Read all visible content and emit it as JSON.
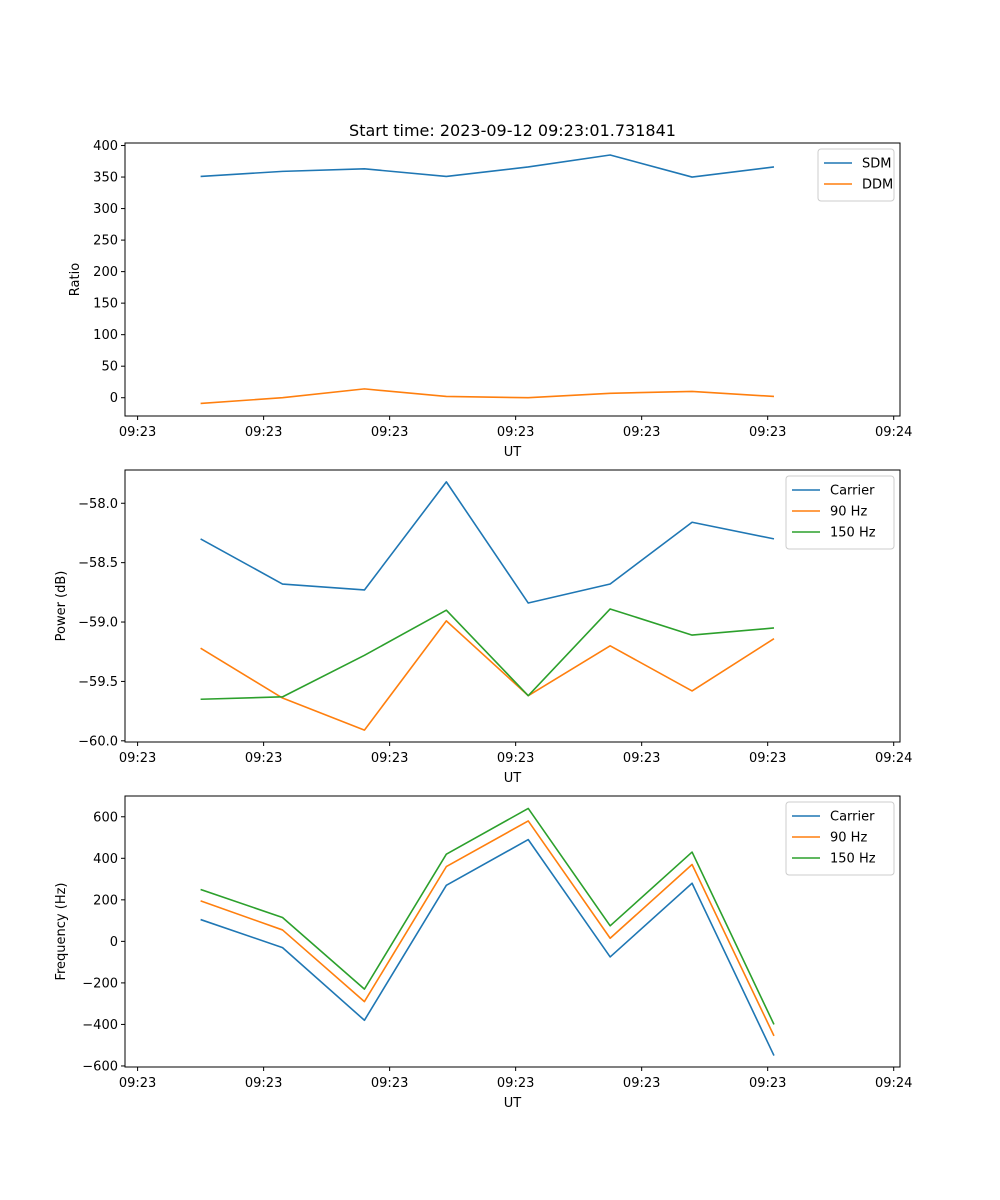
{
  "figure_title": "Start time: 2023-09-12 09:23:01.731841",
  "x_tick_labels": [
    "09:23",
    "09:23",
    "09:23",
    "09:23",
    "09:23",
    "09:23",
    "09:24"
  ],
  "colors": {
    "blue": "#1f77b4",
    "orange": "#ff7f0e",
    "green": "#2ca02c"
  },
  "chart_data": [
    {
      "type": "line",
      "title": "Start time: 2023-09-12 09:23:01.731841",
      "xlabel": "UT",
      "ylabel": "Ratio",
      "x": [
        0.5,
        1.15,
        1.8,
        2.45,
        3.1,
        3.75,
        4.4,
        5.05
      ],
      "xlim": [
        -0.1,
        6.05
      ],
      "ylim": [
        -29,
        404
      ],
      "yticks": [
        0,
        50,
        100,
        150,
        200,
        250,
        300,
        350,
        400
      ],
      "yticklabels": [
        "0",
        "50",
        "100",
        "150",
        "200",
        "250",
        "300",
        "350",
        "400"
      ],
      "legend_loc": "upper right",
      "series": [
        {
          "name": "SDM",
          "color": "#1f77b4",
          "values": [
            351,
            359,
            363,
            351,
            366,
            385,
            350,
            366
          ]
        },
        {
          "name": "DDM",
          "color": "#ff7f0e",
          "values": [
            -9,
            0,
            14,
            2,
            0,
            7,
            10,
            2
          ]
        }
      ]
    },
    {
      "type": "line",
      "xlabel": "UT",
      "ylabel": "Power (dB)",
      "x": [
        0.5,
        1.15,
        1.8,
        2.45,
        3.1,
        3.75,
        4.4,
        5.05
      ],
      "xlim": [
        -0.1,
        6.05
      ],
      "ylim": [
        -60.01,
        -57.72
      ],
      "yticks": [
        -60.0,
        -59.5,
        -59.0,
        -58.5,
        -58.0
      ],
      "yticklabels": [
        "−60.0",
        "−59.5",
        "−59.0",
        "−58.5",
        "−58.0"
      ],
      "legend_loc": "upper right",
      "series": [
        {
          "name": "Carrier",
          "color": "#1f77b4",
          "values": [
            -58.3,
            -58.68,
            -58.73,
            -57.82,
            -58.84,
            -58.68,
            -58.16,
            -58.3
          ]
        },
        {
          "name": "90 Hz",
          "color": "#ff7f0e",
          "values": [
            -59.22,
            -59.64,
            -59.91,
            -58.99,
            -59.62,
            -59.2,
            -59.58,
            -59.14
          ]
        },
        {
          "name": "150 Hz",
          "color": "#2ca02c",
          "values": [
            -59.65,
            -59.63,
            -59.28,
            -58.9,
            -59.62,
            -58.89,
            -59.11,
            -59.05
          ]
        }
      ]
    },
    {
      "type": "line",
      "xlabel": "UT",
      "ylabel": "Frequency (Hz)",
      "x": [
        0.5,
        1.15,
        1.8,
        2.45,
        3.1,
        3.75,
        4.4,
        5.05
      ],
      "xlim": [
        -0.1,
        6.05
      ],
      "ylim": [
        -605,
        700
      ],
      "yticks": [
        -600,
        -400,
        -200,
        0,
        200,
        400,
        600
      ],
      "yticklabels": [
        "−600",
        "−400",
        "−200",
        "0",
        "200",
        "400",
        "600"
      ],
      "legend_loc": "upper right",
      "series": [
        {
          "name": "Carrier",
          "color": "#1f77b4",
          "values": [
            105,
            -30,
            -380,
            270,
            490,
            -75,
            280,
            -550
          ]
        },
        {
          "name": "90 Hz",
          "color": "#ff7f0e",
          "values": [
            195,
            55,
            -290,
            360,
            580,
            15,
            370,
            -455
          ]
        },
        {
          "name": "150 Hz",
          "color": "#2ca02c",
          "values": [
            250,
            115,
            -230,
            420,
            640,
            75,
            430,
            -400
          ]
        }
      ]
    }
  ]
}
